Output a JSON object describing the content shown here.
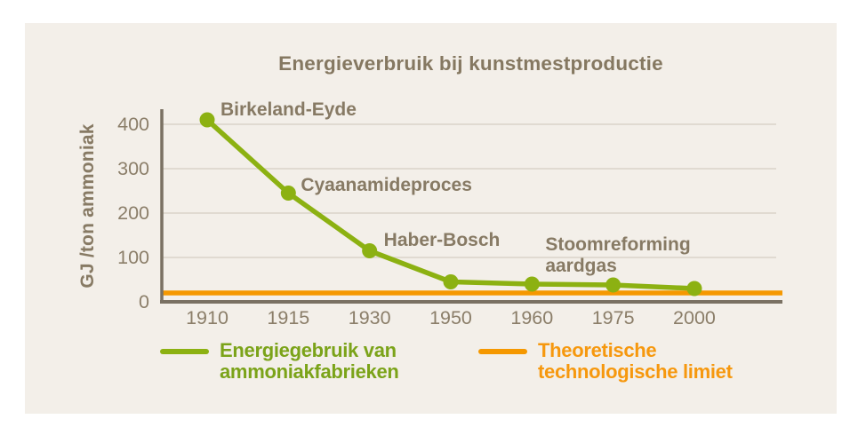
{
  "page": {
    "background": "#ffffff",
    "panel_background": "#f3efe9"
  },
  "chart_data": {
    "type": "line",
    "title": "Energieverbruik bij kunstmestproductie",
    "xlabel": "",
    "ylabel": "GJ /ton ammoniak",
    "categories": [
      "1910",
      "1915",
      "1930",
      "1950",
      "1960",
      "1975",
      "2000"
    ],
    "yticks": [
      0,
      100,
      200,
      300,
      400
    ],
    "ylim": [
      0,
      440
    ],
    "grid": "horizontal",
    "legend_position": "bottom",
    "series": [
      {
        "name": "Energiegebruik van ammoniakfabrieken",
        "type": "line",
        "color": "#8cb112",
        "values": [
          410,
          245,
          115,
          45,
          40,
          38,
          30
        ]
      },
      {
        "name": "Theoretische technologische limiet",
        "type": "hline",
        "color": "#f59800",
        "value": 20
      }
    ],
    "annotations": [
      {
        "text": "Birkeland-Eyde",
        "category": "1910",
        "value": 410
      },
      {
        "text": "Cyaanamideproces",
        "category": "1915",
        "value": 245
      },
      {
        "text": "Haber-Bosch",
        "category": "1930",
        "value": 115
      },
      {
        "text": "Stoomreforming\naardgas",
        "category": "1960",
        "value": 40
      }
    ]
  },
  "legend": {
    "items": [
      {
        "label": "Energiegebruik van ammoniakfabrieken",
        "text_color": "#7ba319",
        "swatch_color": "#8cb112"
      },
      {
        "label": "Theoretische technologische limiet",
        "text_color": "#f6980e",
        "swatch_color": "#f59800"
      }
    ]
  },
  "colors": {
    "title_text": "#857861",
    "annotation_text": "#877a64",
    "tick_text": "#8b7e69",
    "axis_line": "#7a7163",
    "gridline": "#d9d3c9"
  }
}
